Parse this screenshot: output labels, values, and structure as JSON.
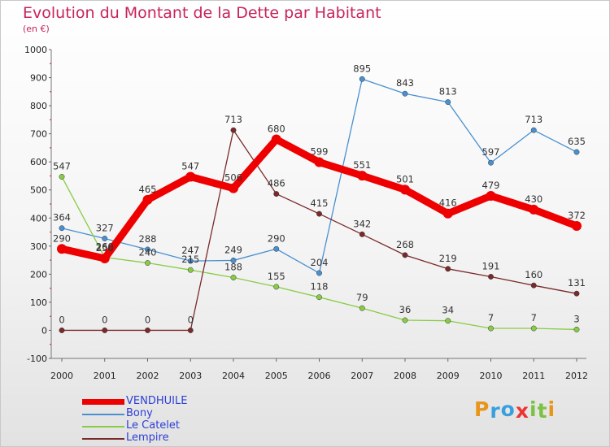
{
  "chart": {
    "title": "Evolution du Montant de la Dette par Habitant",
    "subtitle": "(en €)"
  },
  "chart_data": {
    "type": "line",
    "title": "Evolution du Montant de la Dette par Habitant",
    "subtitle": "(en €)",
    "xlabel": "",
    "ylabel": "",
    "ylim": [
      -100,
      1000
    ],
    "yticks": [
      -100,
      0,
      100,
      200,
      300,
      400,
      500,
      600,
      700,
      800,
      900,
      1000
    ],
    "categories": [
      "2000",
      "2001",
      "2002",
      "2003",
      "2004",
      "2005",
      "2006",
      "2007",
      "2008",
      "2009",
      "2010",
      "2011",
      "2012"
    ],
    "grid": false,
    "legend_position": "bottom-left",
    "series": [
      {
        "name": "Bony",
        "color": "#4a90d0",
        "values": [
          364,
          327,
          288,
          247,
          249,
          290,
          204,
          895,
          843,
          813,
          597,
          713,
          635
        ]
      },
      {
        "name": "Le Catelet",
        "color": "#88cc44",
        "values": [
          547,
          260,
          240,
          215,
          188,
          155,
          118,
          79,
          36,
          34,
          7,
          7,
          3
        ]
      },
      {
        "name": "Lempire",
        "color": "#7a2a2a",
        "values": [
          0,
          0,
          0,
          0,
          713,
          486,
          415,
          342,
          268,
          219,
          191,
          160,
          131
        ]
      },
      {
        "name": "VENDHUILE",
        "color": "#ee0000",
        "values": [
          290,
          256,
          465,
          547,
          506,
          680,
          599,
          551,
          501,
          416,
          479,
          430,
          372
        ]
      }
    ],
    "legend_order": [
      "VENDHUILE",
      "Bony",
      "Le Catelet",
      "Lempire"
    ]
  },
  "logo": {
    "letters": [
      "P",
      "r",
      "o",
      "x",
      "i",
      "t",
      "i"
    ],
    "colors": [
      "#e8951c",
      "#3aa0dd",
      "#3aa0dd",
      "#ee3333",
      "#7cc242",
      "#7cc242",
      "#e8951c"
    ]
  }
}
